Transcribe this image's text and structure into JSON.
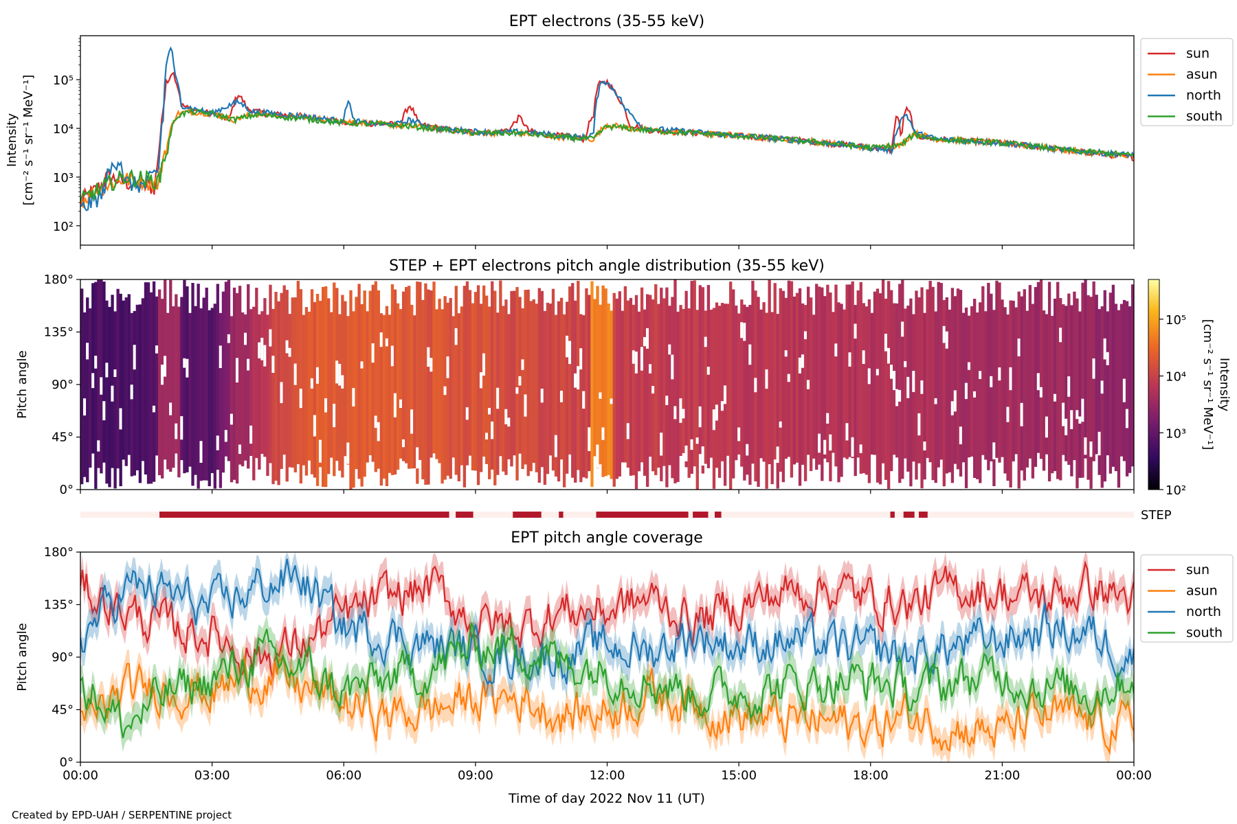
{
  "footer": "Created by EPD-UAH / SERPENTINE project",
  "xlabel": "Time of day 2022 Nov 11 (UT)",
  "xticks": [
    "00:00",
    "03:00",
    "06:00",
    "09:00",
    "12:00",
    "15:00",
    "18:00",
    "21:00",
    "00:00"
  ],
  "step_label": "STEP",
  "chart_data": [
    {
      "type": "line",
      "title": "EPT electrons (35-55 keV)",
      "ylabel": [
        "Intensity",
        "[cm⁻² s⁻¹ sr⁻¹ MeV⁻¹]"
      ],
      "yscale": "log",
      "ylim": [
        40,
        800000
      ],
      "yticks": [
        {
          "v": 100,
          "label": "10²"
        },
        {
          "v": 1000,
          "label": "10³"
        },
        {
          "v": 10000,
          "label": "10⁴"
        },
        {
          "v": 100000,
          "label": "10⁵"
        }
      ],
      "xlim_hours": [
        0,
        24
      ],
      "legend": "outside-right",
      "series": [
        {
          "name": "sun",
          "color": "#d62728",
          "x": [
            0,
            0.3,
            0.5,
            0.6,
            0.8,
            1.0,
            1.2,
            1.5,
            1.7,
            1.8,
            1.9,
            2.0,
            2.1,
            2.2,
            2.3,
            2.5,
            3.0,
            3.4,
            3.6,
            3.8,
            4.2,
            5.0,
            6.0,
            7.3,
            7.5,
            7.7,
            8.5,
            9.5,
            9.8,
            10.0,
            10.2,
            10.5,
            11.0,
            11.5,
            11.7,
            11.8,
            12.0,
            12.2,
            12.5,
            13.0,
            15.0,
            17.0,
            18.0,
            18.5,
            18.6,
            18.7,
            18.8,
            18.9,
            19.0,
            19.5,
            21.0,
            22.5,
            24.0
          ],
          "y": [
            300,
            500,
            700,
            1000,
            900,
            800,
            700,
            650,
            600,
            3000,
            30000,
            100000,
            150000,
            80000,
            30000,
            25000,
            20000,
            15000,
            50000,
            25000,
            20000,
            18000,
            13000,
            12000,
            30000,
            12000,
            9000,
            8000,
            10000,
            17000,
            9000,
            7500,
            7000,
            6000,
            20000,
            80000,
            90000,
            50000,
            12000,
            9000,
            7000,
            5000,
            4000,
            3500,
            20000,
            5000,
            25000,
            20000,
            7000,
            6000,
            5000,
            3500,
            2500
          ]
        },
        {
          "name": "asun",
          "color": "#ff7f0e",
          "x": [
            0,
            0.5,
            1.0,
            1.5,
            1.8,
            2.0,
            2.2,
            2.5,
            3.0,
            3.5,
            4.0,
            5.0,
            6.0,
            7.0,
            8.0,
            9.0,
            10.0,
            11.0,
            11.7,
            12.0,
            12.5,
            13.0,
            15.0,
            17.0,
            18.0,
            18.7,
            19.0,
            19.5,
            21.0,
            22.5,
            24.0
          ],
          "y": [
            300,
            600,
            900,
            800,
            700,
            5000,
            20000,
            22000,
            20000,
            15000,
            20000,
            17000,
            14000,
            12000,
            10000,
            8000,
            8000,
            6500,
            6000,
            12000,
            10000,
            9000,
            7000,
            5000,
            4000,
            4500,
            8000,
            6000,
            5000,
            3500,
            2500
          ]
        },
        {
          "name": "north",
          "color": "#1f77b4",
          "x": [
            0,
            0.5,
            0.9,
            1.0,
            1.2,
            1.5,
            1.8,
            1.9,
            2.0,
            2.05,
            2.15,
            2.3,
            2.6,
            3.0,
            3.6,
            3.9,
            5.0,
            6.0,
            6.1,
            6.2,
            6.4,
            7.0,
            7.3,
            7.5,
            8.0,
            9.5,
            10.0,
            11.0,
            11.5,
            11.7,
            11.9,
            12.1,
            12.4,
            12.8,
            15.0,
            17.0,
            18.0,
            18.5,
            18.7,
            18.8,
            19.0,
            19.5,
            21.0,
            22.5,
            24.0
          ],
          "y": [
            200,
            400,
            2500,
            800,
            700,
            650,
            1500,
            20000,
            300000,
            500000,
            120000,
            30000,
            25000,
            20000,
            35000,
            22000,
            18000,
            14000,
            40000,
            15000,
            13000,
            12000,
            12500,
            15000,
            10000,
            8000,
            8500,
            7000,
            6500,
            8000,
            100000,
            70000,
            25000,
            10000,
            7000,
            5000,
            4000,
            3500,
            15000,
            20000,
            8000,
            6000,
            5000,
            3500,
            2800
          ]
        },
        {
          "name": "south",
          "color": "#2ca02c",
          "x": [
            0,
            0.5,
            1.0,
            1.5,
            1.8,
            2.0,
            2.2,
            2.5,
            3.0,
            3.5,
            4.0,
            5.0,
            6.0,
            7.0,
            8.0,
            9.0,
            10.0,
            11.0,
            11.7,
            12.0,
            12.5,
            13.0,
            15.0,
            17.0,
            18.0,
            18.7,
            19.0,
            19.5,
            21.0,
            22.5,
            24.0
          ],
          "y": [
            300,
            600,
            1000,
            900,
            800,
            4000,
            18000,
            22000,
            20000,
            15000,
            19000,
            16000,
            13000,
            12000,
            10000,
            8000,
            8000,
            6500,
            6000,
            11000,
            10000,
            9000,
            7000,
            5000,
            4000,
            4500,
            7500,
            6000,
            5000,
            3500,
            2800
          ]
        }
      ]
    },
    {
      "type": "heatmap",
      "title": "STEP + EPT electrons pitch angle distribution (35-55 keV)",
      "ylabel": "Pitch angle",
      "ylim": [
        0,
        180
      ],
      "yticks": [
        "0°",
        "45°",
        "90°",
        "135°",
        "180°"
      ],
      "colorbar": {
        "label": [
          "Intensity",
          "[cm⁻² s⁻¹ sr⁻¹ MeV⁻¹]"
        ],
        "scale": "log",
        "range": [
          100,
          500000
        ],
        "ticks": [
          {
            "v": 100,
            "label": "10²"
          },
          {
            "v": 1000,
            "label": "10³"
          },
          {
            "v": 10000,
            "label": "10⁴"
          },
          {
            "v": 100000,
            "label": "10⁵"
          }
        ],
        "colormap": "inferno"
      },
      "hour_levels": [
        600,
        600,
        700,
        800,
        5000,
        20000,
        22000,
        20000,
        18000,
        16000,
        13000,
        12000,
        10000,
        8500,
        8000,
        7000,
        6500,
        6000,
        5500,
        5000,
        4500,
        4000,
        3500,
        3000,
        2500
      ]
    },
    {
      "type": "bar",
      "title": "",
      "label": "STEP",
      "coverage_intervals_hours": [
        [
          1.8,
          8.4
        ],
        [
          8.55,
          8.95
        ],
        [
          9.85,
          10.5
        ],
        [
          10.9,
          11.0
        ],
        [
          11.75,
          13.85
        ],
        [
          13.95,
          14.3
        ],
        [
          14.45,
          14.6
        ],
        [
          18.45,
          18.55
        ],
        [
          18.75,
          19.0
        ],
        [
          19.1,
          19.3
        ]
      ],
      "covered_color": "#b2182b",
      "uncovered_color": "#fdf0ec"
    },
    {
      "type": "line",
      "title": "EPT pitch angle coverage",
      "ylabel": "Pitch angle",
      "ylim": [
        0,
        180
      ],
      "yticks": [
        "0°",
        "45°",
        "90°",
        "135°",
        "180°"
      ],
      "legend": "outside-right",
      "series": [
        {
          "name": "sun",
          "color": "#d62728",
          "x": [
            0,
            1,
            2,
            3,
            4,
            5,
            6,
            7,
            8,
            9,
            10,
            11,
            12,
            13,
            14,
            15,
            16,
            17,
            18,
            19,
            20,
            21,
            22,
            23,
            24
          ],
          "y": [
            150,
            130,
            115,
            110,
            90,
            100,
            125,
            140,
            150,
            120,
            115,
            130,
            130,
            140,
            120,
            135,
            145,
            150,
            140,
            135,
            150,
            145,
            140,
            150,
            140
          ]
        },
        {
          "name": "asun",
          "color": "#ff7f0e",
          "x": [
            0,
            1,
            2,
            3,
            4,
            5,
            6,
            7,
            8,
            9,
            10,
            11,
            12,
            13,
            14,
            15,
            16,
            17,
            18,
            19,
            20,
            21,
            22,
            23,
            24
          ],
          "y": [
            30,
            60,
            65,
            60,
            75,
            65,
            50,
            40,
            45,
            55,
            55,
            40,
            45,
            60,
            50,
            40,
            35,
            35,
            30,
            40,
            30,
            25,
            40,
            35,
            30
          ]
        },
        {
          "name": "north",
          "color": "#1f77b4",
          "x": [
            0,
            1,
            2,
            3,
            4,
            5,
            6,
            7,
            8,
            9,
            10,
            11,
            12,
            13,
            14,
            15,
            16,
            17,
            18,
            19,
            20,
            21,
            22,
            23,
            24
          ],
          "y": [
            105,
            150,
            145,
            130,
            150,
            160,
            115,
            110,
            100,
            95,
            90,
            90,
            100,
            95,
            110,
            100,
            105,
            100,
            95,
            90,
            100,
            105,
            115,
            110,
            90
          ]
        },
        {
          "name": "south",
          "color": "#2ca02c",
          "x": [
            0,
            1,
            2,
            3,
            4,
            5,
            6,
            7,
            8,
            9,
            10,
            11,
            12,
            13,
            14,
            15,
            16,
            17,
            18,
            19,
            20,
            21,
            22,
            23,
            24
          ],
          "y": [
            75,
            30,
            60,
            70,
            90,
            80,
            60,
            70,
            80,
            100,
            100,
            85,
            80,
            70,
            60,
            60,
            65,
            70,
            70,
            60,
            70,
            75,
            65,
            60,
            75
          ]
        }
      ]
    }
  ]
}
